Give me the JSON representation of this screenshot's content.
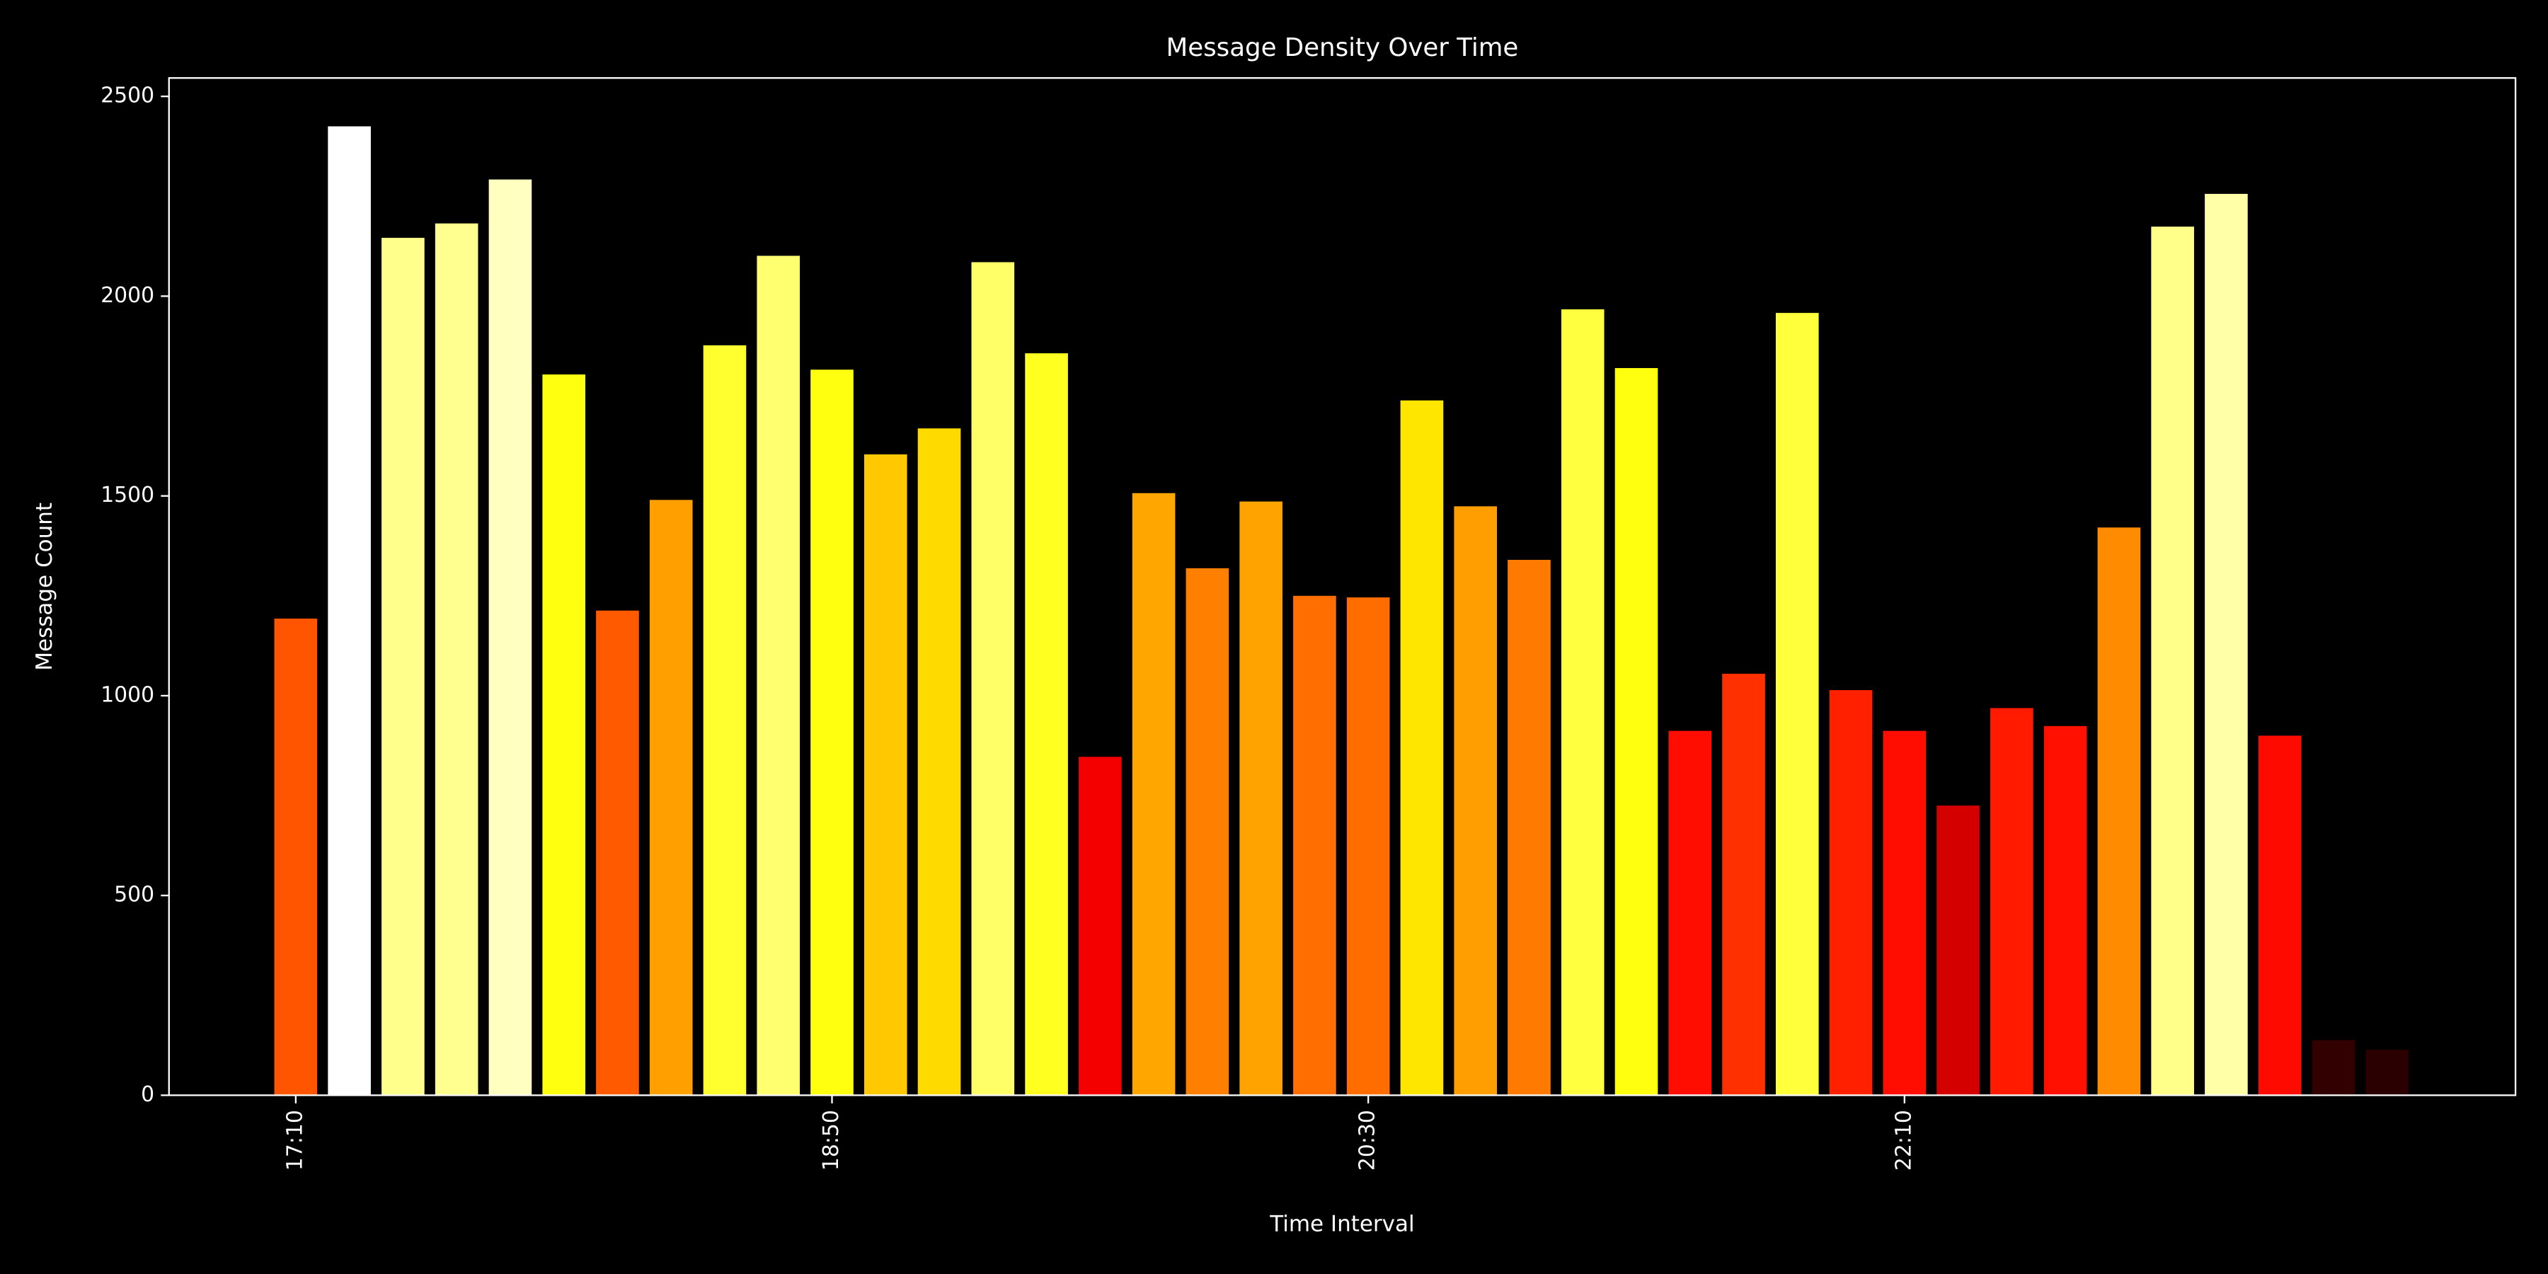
{
  "chart_data": {
    "type": "bar",
    "title": "Message Density Over Time",
    "x_label": "Time Interval",
    "y_label": "Message Count",
    "categories": [
      "17:10",
      null,
      null,
      null,
      null,
      null,
      null,
      null,
      null,
      null,
      "18:50",
      null,
      null,
      null,
      null,
      null,
      null,
      null,
      null,
      null,
      "20:30",
      null,
      null,
      null,
      null,
      null,
      null,
      null,
      null,
      null,
      "22:10",
      null,
      null,
      null,
      null,
      null,
      null,
      null,
      null,
      null
    ],
    "values": [
      1193,
      2425,
      2146,
      2182,
      2292,
      1804,
      1213,
      1490,
      1877,
      2101,
      1816,
      1604,
      1669,
      2085,
      1857,
      847,
      1507,
      1319,
      1486,
      1250,
      1246,
      1739,
      1474,
      1340,
      1967,
      1820,
      912,
      1055,
      1958,
      1014,
      912,
      725,
      969,
      924,
      1421,
      2174,
      2256,
      900,
      138,
      114
    ],
    "colors": [
      "#ff5500",
      "#ffffff",
      "#ffff8c",
      "#ffff90",
      "#ffffc0",
      "#ffff10",
      "#ff5a00",
      "#ffa000",
      "#ffff30",
      "#ffff70",
      "#ffff10",
      "#ffc800",
      "#ffda00",
      "#ffff68",
      "#ffff20",
      "#f50000",
      "#ffa600",
      "#ff8000",
      "#ffa300",
      "#ff6e00",
      "#ff6c00",
      "#ffe600",
      "#ff9e00",
      "#ff7a00",
      "#ffff40",
      "#ffff10",
      "#ff0d00",
      "#ff3000",
      "#ffff3c",
      "#ff2000",
      "#ff0d00",
      "#d40000",
      "#ff1a00",
      "#ff1000",
      "#ff8c00",
      "#ffff8a",
      "#ffffa8",
      "#ff0a00",
      "#330000",
      "#2a0000"
    ],
    "ylim": [
      0,
      2546
    ],
    "yticks": [
      0,
      500,
      1000,
      1500,
      2000,
      2500
    ],
    "grid": false
  }
}
